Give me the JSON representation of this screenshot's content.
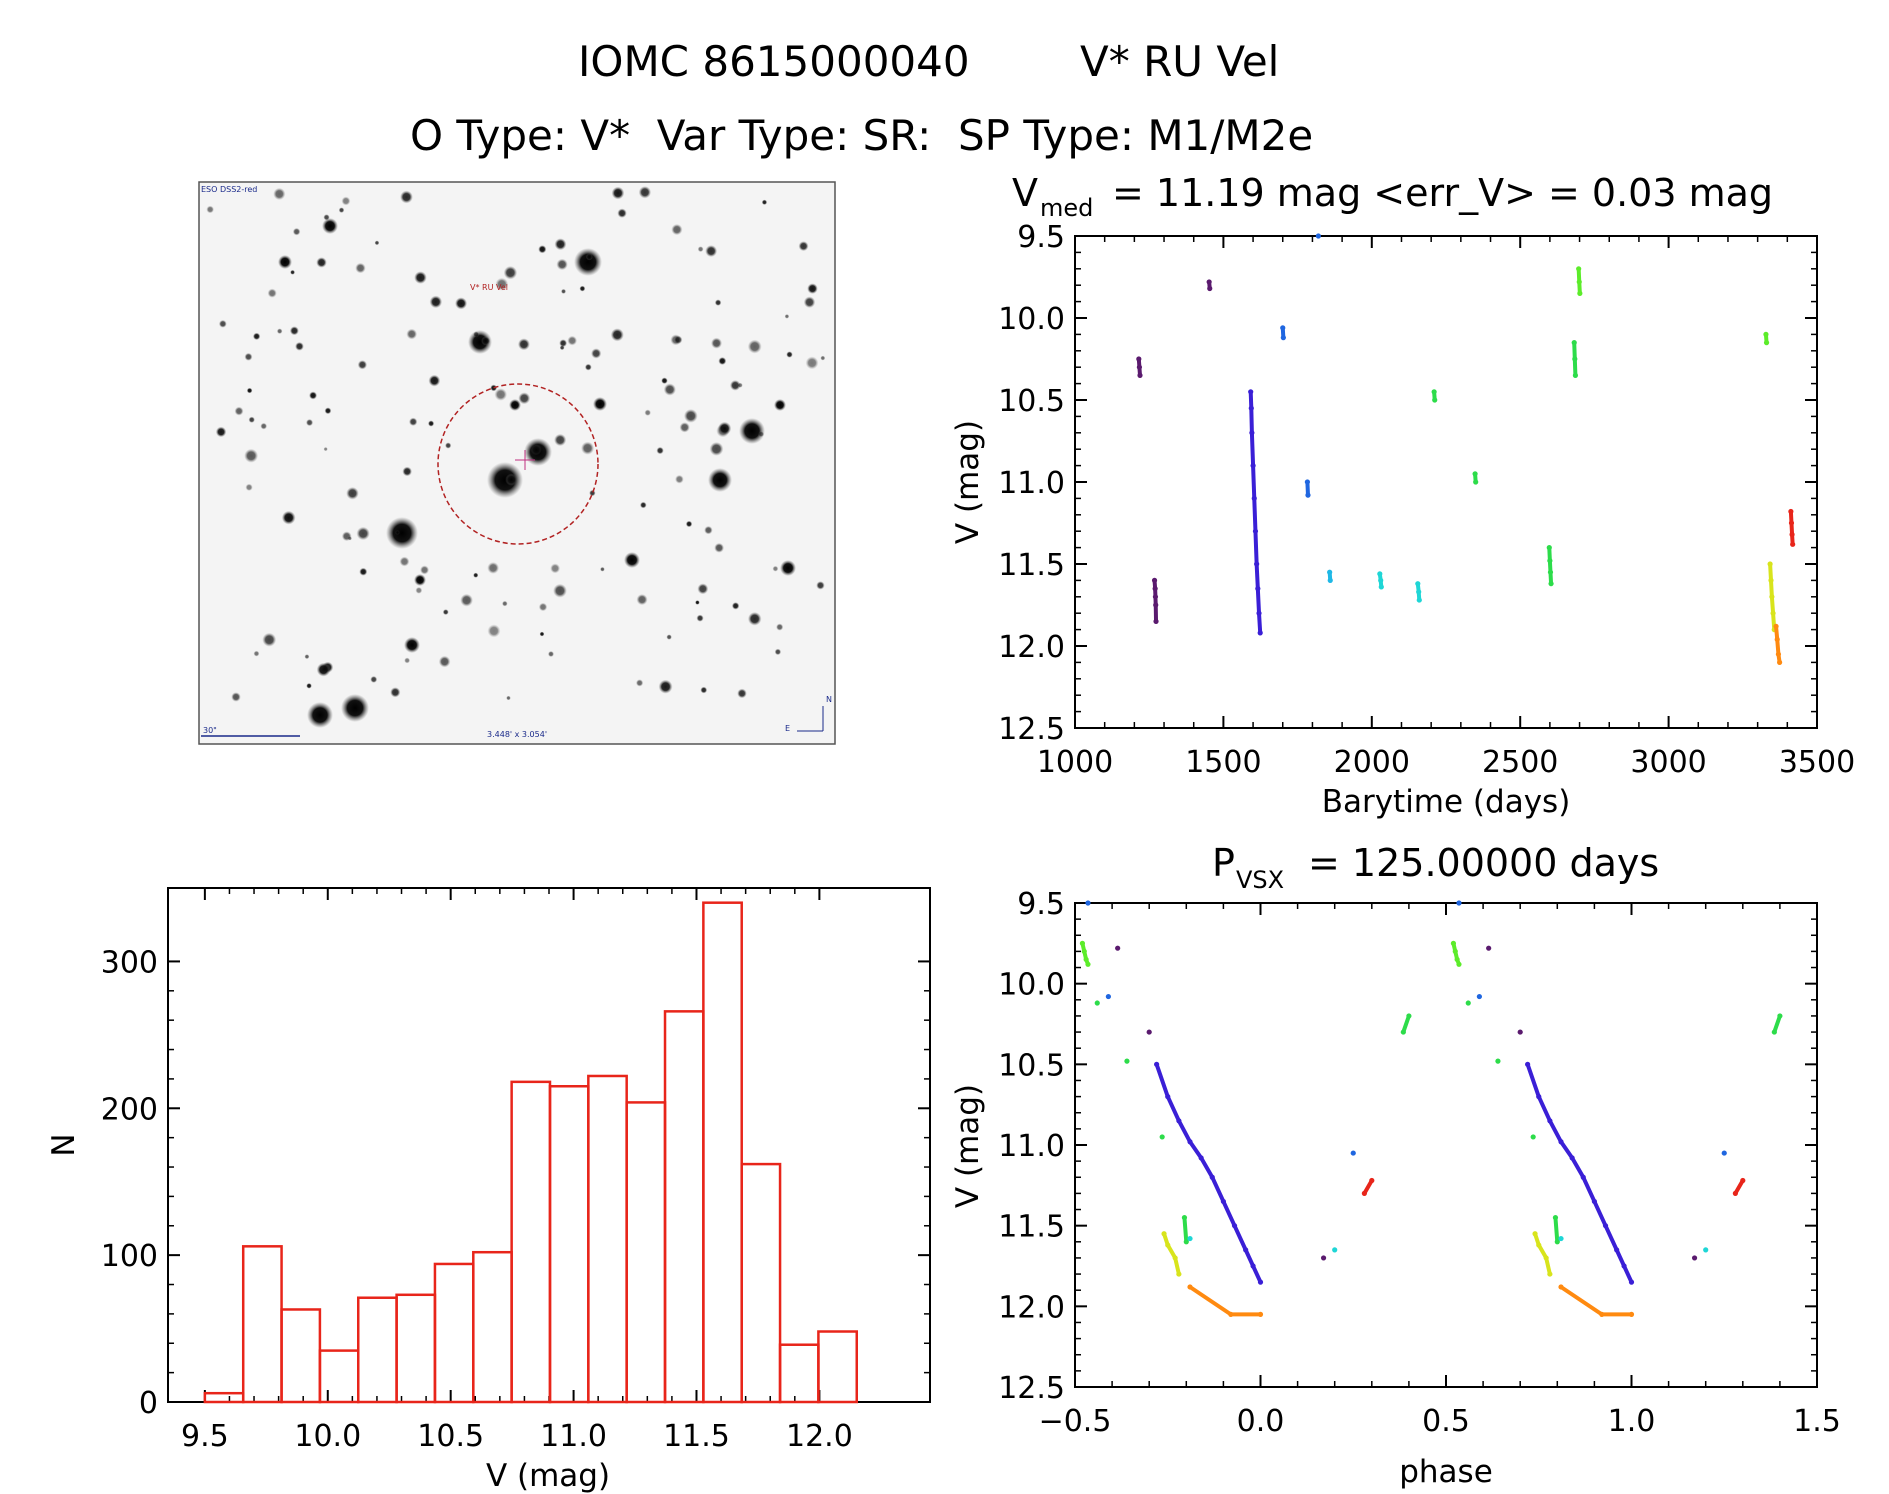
{
  "header": {
    "line1_left": "IOMC 8615000040",
    "line1_right": "V* RU Vel",
    "line2": "O Type: V*  Var Type: SR:  SP Type: M1/M2e"
  },
  "finder_chart": {
    "survey_label": "ESO DSS2-red",
    "target_label": "V* RU Vel",
    "scale_label": "30\"",
    "fov_label": "3.448' x 3.054'",
    "compass_north": "N",
    "compass_east": "E"
  },
  "chart_data": [
    {
      "type": "scatter",
      "panel": "light-curve",
      "title_main": "V",
      "title_sub": "med",
      "title_rest": "= 11.19 mag <err_V> = 0.03 mag",
      "xlabel": "Barytime (days)",
      "ylabel": "V (mag)",
      "xlim": [
        1000,
        3500
      ],
      "ylim": [
        12.5,
        9.5
      ],
      "y_inverted": true,
      "xticks": [
        1000,
        1500,
        2000,
        2500,
        3000,
        3500
      ],
      "yticks": [
        9.5,
        10.0,
        10.5,
        11.0,
        11.5,
        12.0,
        12.5
      ],
      "xtick_labels": [
        "1000",
        "1500",
        "2000",
        "2500",
        "3000",
        "3500"
      ],
      "ytick_labels": [
        "9.5",
        "10.0",
        "10.5",
        "11.0",
        "11.5",
        "12.0",
        "12.5"
      ],
      "groups": [
        {
          "color": "#5a1a6e",
          "x": [
            1215,
            1217,
            1219
          ],
          "y": [
            10.25,
            10.3,
            10.35
          ]
        },
        {
          "color": "#5a1a6e",
          "x": [
            1268,
            1270,
            1271,
            1272,
            1273
          ],
          "y": [
            11.6,
            11.65,
            11.7,
            11.75,
            11.85
          ]
        },
        {
          "color": "#5a1a6e",
          "x": [
            1452,
            1454
          ],
          "y": [
            9.78,
            9.82
          ]
        },
        {
          "color": "#3a1fd6",
          "x": [
            1592,
            1594,
            1596,
            1600,
            1604,
            1608,
            1612,
            1616,
            1620,
            1624
          ],
          "y": [
            10.45,
            10.55,
            10.7,
            10.9,
            11.1,
            11.3,
            11.5,
            11.65,
            11.8,
            11.92
          ]
        },
        {
          "color": "#1f66e0",
          "x": [
            1700,
            1702
          ],
          "y": [
            10.06,
            10.12
          ]
        },
        {
          "color": "#1f66e0",
          "x": [
            1783,
            1785
          ],
          "y": [
            11.0,
            11.08
          ]
        },
        {
          "color": "#1f66e0",
          "x": [
            1820
          ],
          "y": [
            9.5
          ]
        },
        {
          "color": "#1fb8e6",
          "x": [
            1858,
            1860
          ],
          "y": [
            11.55,
            11.6
          ]
        },
        {
          "color": "#1fd6d6",
          "x": [
            2027,
            2030,
            2032
          ],
          "y": [
            11.56,
            11.6,
            11.64
          ]
        },
        {
          "color": "#1fd6d6",
          "x": [
            2155,
            2158,
            2160
          ],
          "y": [
            11.62,
            11.67,
            11.72
          ]
        },
        {
          "color": "#2ddc4a",
          "x": [
            2210,
            2212
          ],
          "y": [
            10.45,
            10.5
          ]
        },
        {
          "color": "#2ddc4a",
          "x": [
            2348,
            2350
          ],
          "y": [
            10.95,
            11.0
          ]
        },
        {
          "color": "#2ddc4a",
          "x": [
            2598,
            2600,
            2602,
            2604
          ],
          "y": [
            11.4,
            11.48,
            11.55,
            11.62
          ]
        },
        {
          "color": "#2ddc4a",
          "x": [
            2682,
            2684,
            2686
          ],
          "y": [
            10.15,
            10.25,
            10.35
          ]
        },
        {
          "color": "#5cec2a",
          "x": [
            2697,
            2699,
            2701
          ],
          "y": [
            9.7,
            9.78,
            9.85
          ]
        },
        {
          "color": "#5cec2a",
          "x": [
            3328,
            3330
          ],
          "y": [
            10.1,
            10.15
          ]
        },
        {
          "color": "#d8e41c",
          "x": [
            3342,
            3345,
            3348,
            3352,
            3356
          ],
          "y": [
            11.5,
            11.6,
            11.7,
            11.8,
            11.9
          ]
        },
        {
          "color": "#ff8a10",
          "x": [
            3362,
            3366,
            3370,
            3374
          ],
          "y": [
            11.88,
            11.96,
            12.05,
            12.1
          ]
        },
        {
          "color": "#e8251a",
          "x": [
            3412,
            3414,
            3416,
            3418
          ],
          "y": [
            11.18,
            11.25,
            11.32,
            11.38
          ]
        }
      ]
    },
    {
      "type": "bar",
      "panel": "histogram",
      "xlabel": "V (mag)",
      "ylabel": "N",
      "xlim": [
        9.35,
        12.45
      ],
      "ylim": [
        0,
        350
      ],
      "bar_color": "#e8251a",
      "bin_width": 0.156,
      "bins_left": [
        9.5,
        9.656,
        9.812,
        9.968,
        10.124,
        10.28,
        10.436,
        10.592,
        10.748,
        10.904,
        11.06,
        11.216,
        11.372,
        11.528,
        11.684,
        11.84,
        11.996
      ],
      "values": [
        6,
        106,
        63,
        35,
        71,
        73,
        94,
        102,
        218,
        215,
        222,
        204,
        266,
        340,
        162,
        39,
        48
      ],
      "xticks": [
        9.5,
        10.0,
        10.5,
        11.0,
        11.5,
        12.0
      ],
      "yticks": [
        0,
        100,
        200,
        300
      ],
      "xtick_labels": [
        "9.5",
        "10.0",
        "10.5",
        "11.0",
        "11.5",
        "12.0"
      ],
      "ytick_labels": [
        "0",
        "100",
        "200",
        "300"
      ]
    },
    {
      "type": "scatter",
      "panel": "phased-curve",
      "title_main": "P",
      "title_sub": "VSX",
      "title_rest": "= 125.00000 days",
      "xlabel": "phase",
      "ylabel": "V (mag)",
      "xlim": [
        -0.5,
        1.5
      ],
      "ylim": [
        12.5,
        9.5
      ],
      "y_inverted": true,
      "xticks": [
        -0.5,
        0.0,
        0.5,
        1.0,
        1.5
      ],
      "yticks": [
        9.5,
        10.0,
        10.5,
        11.0,
        11.5,
        12.0,
        12.5
      ],
      "xtick_labels": [
        "−0.5",
        "0.0",
        "0.5",
        "1.0",
        "1.5"
      ],
      "ytick_labels": [
        "9.5",
        "10.0",
        "10.5",
        "11.0",
        "11.5",
        "12.0",
        "12.5"
      ],
      "groups": [
        {
          "color": "#1f66e0",
          "x": [
            -0.465
          ],
          "y": [
            9.5
          ]
        },
        {
          "color": "#5cec2a",
          "x": [
            -0.48,
            -0.475,
            -0.47,
            -0.465
          ],
          "y": [
            9.75,
            9.8,
            9.85,
            9.88
          ]
        },
        {
          "color": "#2ddc4a",
          "x": [
            -0.44
          ],
          "y": [
            10.12
          ]
        },
        {
          "color": "#1f66e0",
          "x": [
            -0.41
          ],
          "y": [
            10.08
          ]
        },
        {
          "color": "#5a1a6e",
          "x": [
            -0.385
          ],
          "y": [
            9.78
          ]
        },
        {
          "color": "#2ddc4a",
          "x": [
            -0.36
          ],
          "y": [
            10.48
          ]
        },
        {
          "color": "#5a1a6e",
          "x": [
            -0.3
          ],
          "y": [
            10.3
          ]
        },
        {
          "color": "#3a1fd6",
          "x": [
            -0.28,
            -0.25,
            -0.22,
            -0.19,
            -0.16,
            -0.13,
            -0.1,
            -0.07,
            -0.04,
            -0.02,
            0.0
          ],
          "y": [
            10.5,
            10.7,
            10.85,
            10.98,
            11.08,
            11.2,
            11.35,
            11.5,
            11.65,
            11.75,
            11.85
          ]
        },
        {
          "color": "#2ddc4a",
          "x": [
            -0.265
          ],
          "y": [
            10.95
          ]
        },
        {
          "color": "#d8e41c",
          "x": [
            -0.26,
            -0.25,
            -0.23,
            -0.22
          ],
          "y": [
            11.55,
            11.62,
            11.7,
            11.8
          ]
        },
        {
          "color": "#2ddc4a",
          "x": [
            -0.205,
            -0.2
          ],
          "y": [
            11.45,
            11.6
          ]
        },
        {
          "color": "#1fd6d6",
          "x": [
            -0.19
          ],
          "y": [
            11.58
          ]
        },
        {
          "color": "#ff8a10",
          "x": [
            -0.19,
            -0.08,
            0.0
          ],
          "y": [
            11.88,
            12.05,
            12.05
          ]
        },
        {
          "color": "#5a1a6e",
          "x": [
            0.17
          ],
          "y": [
            11.7
          ]
        },
        {
          "color": "#1fd6d6",
          "x": [
            0.2
          ],
          "y": [
            11.65
          ]
        },
        {
          "color": "#1f66e0",
          "x": [
            0.25
          ],
          "y": [
            11.05
          ]
        },
        {
          "color": "#e8251a",
          "x": [
            0.28,
            0.3
          ],
          "y": [
            11.3,
            11.22
          ]
        },
        {
          "color": "#2ddc4a",
          "x": [
            0.385,
            0.4
          ],
          "y": [
            10.3,
            10.2
          ]
        },
        {
          "color": "#1f66e0",
          "x": [
            0.535
          ],
          "y": [
            9.5
          ]
        },
        {
          "color": "#5cec2a",
          "x": [
            0.52,
            0.525,
            0.53,
            0.535
          ],
          "y": [
            9.75,
            9.8,
            9.85,
            9.88
          ]
        },
        {
          "color": "#2ddc4a",
          "x": [
            0.56
          ],
          "y": [
            10.12
          ]
        },
        {
          "color": "#1f66e0",
          "x": [
            0.59
          ],
          "y": [
            10.08
          ]
        },
        {
          "color": "#5a1a6e",
          "x": [
            0.615
          ],
          "y": [
            9.78
          ]
        },
        {
          "color": "#2ddc4a",
          "x": [
            0.64
          ],
          "y": [
            10.48
          ]
        },
        {
          "color": "#5a1a6e",
          "x": [
            0.7
          ],
          "y": [
            10.3
          ]
        },
        {
          "color": "#3a1fd6",
          "x": [
            0.72,
            0.75,
            0.78,
            0.81,
            0.84,
            0.87,
            0.9,
            0.93,
            0.96,
            0.98,
            1.0
          ],
          "y": [
            10.5,
            10.7,
            10.85,
            10.98,
            11.08,
            11.2,
            11.35,
            11.5,
            11.65,
            11.75,
            11.85
          ]
        },
        {
          "color": "#2ddc4a",
          "x": [
            0.735
          ],
          "y": [
            10.95
          ]
        },
        {
          "color": "#d8e41c",
          "x": [
            0.74,
            0.75,
            0.77,
            0.78
          ],
          "y": [
            11.55,
            11.62,
            11.7,
            11.8
          ]
        },
        {
          "color": "#2ddc4a",
          "x": [
            0.795,
            0.8
          ],
          "y": [
            11.45,
            11.6
          ]
        },
        {
          "color": "#1fd6d6",
          "x": [
            0.81
          ],
          "y": [
            11.58
          ]
        },
        {
          "color": "#ff8a10",
          "x": [
            0.81,
            0.92,
            1.0
          ],
          "y": [
            11.88,
            12.05,
            12.05
          ]
        },
        {
          "color": "#5a1a6e",
          "x": [
            1.17
          ],
          "y": [
            11.7
          ]
        },
        {
          "color": "#1fd6d6",
          "x": [
            1.2
          ],
          "y": [
            11.65
          ]
        },
        {
          "color": "#1f66e0",
          "x": [
            1.25
          ],
          "y": [
            11.05
          ]
        },
        {
          "color": "#e8251a",
          "x": [
            1.28,
            1.3
          ],
          "y": [
            11.3,
            11.22
          ]
        },
        {
          "color": "#2ddc4a",
          "x": [
            1.385,
            1.4
          ],
          "y": [
            10.3,
            10.2
          ]
        }
      ]
    }
  ]
}
